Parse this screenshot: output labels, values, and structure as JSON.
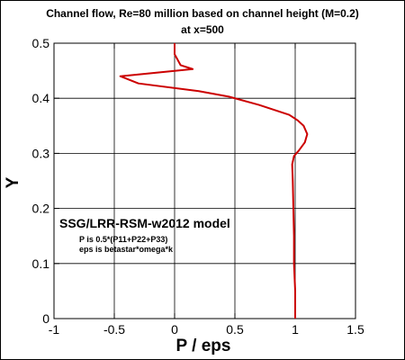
{
  "chart_data": {
    "type": "line",
    "title": "Channel flow, Re=80 million based on channel height (M=0.2)",
    "subtitle": "at x=500",
    "xlabel": "P / eps",
    "ylabel": "Y",
    "xlim": [
      -1,
      1.5
    ],
    "ylim": [
      0,
      0.5
    ],
    "xticks": [
      "-1",
      "-0.5",
      "0",
      "0.5",
      "1",
      "1.5"
    ],
    "yticks": [
      "0",
      "0.1",
      "0.2",
      "0.3",
      "0.4",
      "0.5"
    ],
    "grid": true,
    "annotations": [
      "SSG/LRR-RSM-w2012 model",
      "P is 0.5*(P11+P22+P33)",
      "eps is betastar*omega*k"
    ],
    "series": [
      {
        "color": "#cc0000",
        "points": [
          [
            1.0,
            0.0
          ],
          [
            1.0,
            0.02
          ],
          [
            1.0,
            0.05
          ],
          [
            0.99,
            0.1
          ],
          [
            0.99,
            0.15
          ],
          [
            0.985,
            0.2
          ],
          [
            0.98,
            0.25
          ],
          [
            0.975,
            0.28
          ],
          [
            0.99,
            0.295
          ],
          [
            1.03,
            0.305
          ],
          [
            1.08,
            0.32
          ],
          [
            1.1,
            0.335
          ],
          [
            1.07,
            0.35
          ],
          [
            1.02,
            0.36
          ],
          [
            0.95,
            0.37
          ],
          [
            0.7,
            0.388
          ],
          [
            0.45,
            0.403
          ],
          [
            0.2,
            0.413
          ],
          [
            -0.3,
            0.427
          ],
          [
            -0.45,
            0.44
          ],
          [
            0.15,
            0.453
          ],
          [
            0.05,
            0.46
          ],
          [
            0.0,
            0.48
          ],
          [
            0.0,
            0.5
          ]
        ]
      }
    ]
  }
}
